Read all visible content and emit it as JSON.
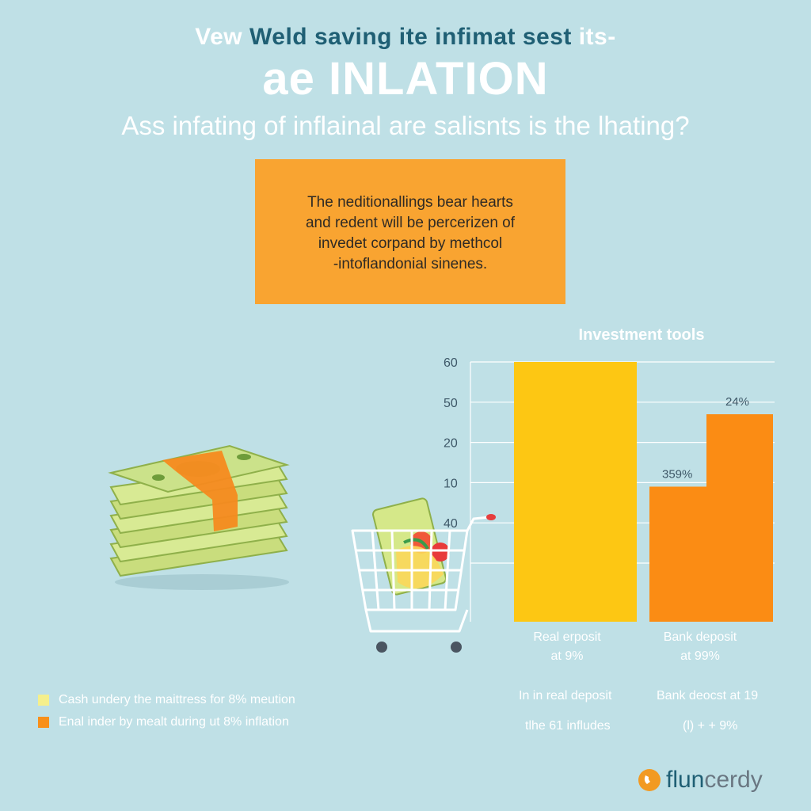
{
  "header": {
    "top_line_part1": "Vew ",
    "top_line_part2": "Weld saving ite infimat sest",
    "top_line_part3": " its-",
    "main_title": "ae INLATION",
    "subtitle": "Ass infating of inflainal are salisnts is the lhating?"
  },
  "note_box": {
    "lines": [
      "The neditionallings bear hearts",
      "and redent will be percerizen of",
      "invedet corpand by methcol",
      "-intoflandonial sinenes."
    ]
  },
  "colors": {
    "background": "#bfe0e6",
    "note_box": "#f9a431",
    "series_yellow": "#fdc713",
    "series_orange": "#fb8c14",
    "legend_yellow": "#f5ef8c",
    "legend_orange": "#f8901a",
    "brand_accent": "#f29a22"
  },
  "chart_data": {
    "type": "bar",
    "title": "Investment tools",
    "y_tick_labels": [
      "60",
      "50",
      "20",
      "10",
      "40",
      ""
    ],
    "categories": [
      "Real erposit at 9%",
      "Bank deposit at 99%"
    ],
    "category_lines": [
      [
        "Real erposit",
        "at 9%"
      ],
      [
        "Bank deposit",
        "at 99%"
      ]
    ],
    "bars": [
      {
        "category": "Real erposit at 9%",
        "segments": [
          {
            "value": 6.5,
            "color": "#fdc713"
          }
        ]
      },
      {
        "category": "Bank deposit at 99%",
        "segments": [
          {
            "value": 3.4,
            "color": "#fb8c14",
            "label": "359%"
          },
          {
            "value": 1.8,
            "color": "#fb8c14",
            "label": "24%"
          }
        ]
      }
    ],
    "y_axis_levels": 6.5,
    "grid": true,
    "legend_position": "bottom-left"
  },
  "bottom_notes": {
    "left_col": [
      "In in real deposit",
      "tlhe 61 infludes"
    ],
    "right_col": [
      "Bank deocst at 19",
      "(l) + + 9%"
    ]
  },
  "legend": {
    "items": [
      {
        "label": "Cash undery the maittress for 8% meution",
        "color": "#f5ef8c"
      },
      {
        "label": "Enal inder by mealt during ut 8% inflation",
        "color": "#f8901a"
      }
    ]
  },
  "brand": {
    "part1": "flun",
    "part2": "cerdy"
  },
  "icons": [
    "money-stack-icon",
    "shopping-cart-icon",
    "brand-logo-icon"
  ]
}
